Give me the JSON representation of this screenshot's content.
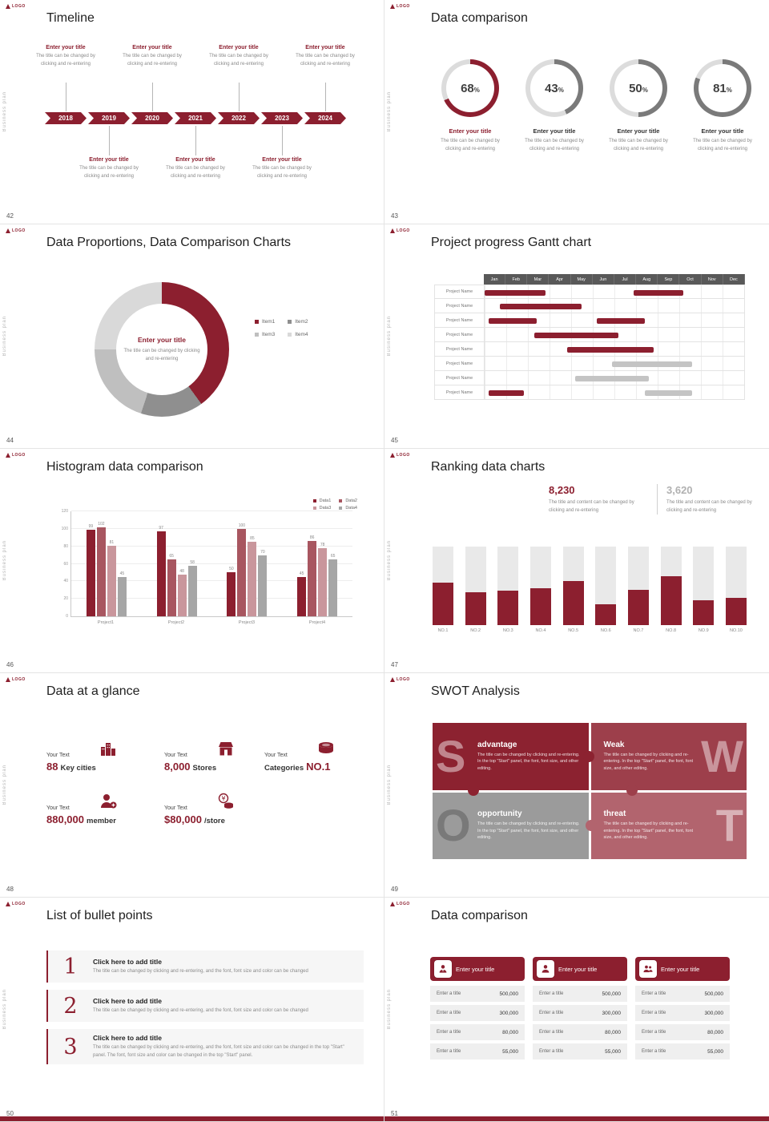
{
  "common": {
    "logo": "LOGO",
    "side_text": "Business plan",
    "item_title": "Enter your title",
    "item_desc": "The title can be changed by clicking and re-entering",
    "percent": "%",
    "colors": {
      "accent": "#8c1f2f",
      "gray_arc": "#7a7a7a",
      "track": "#dcdcdc"
    }
  },
  "timeline": {
    "page": "42",
    "title": "Timeline",
    "years": [
      "2018",
      "2019",
      "2020",
      "2021",
      "2022",
      "2023",
      "2024"
    ]
  },
  "donut_compare": {
    "page": "43",
    "title": "Data comparison",
    "items": [
      {
        "pct": 68,
        "accent": true
      },
      {
        "pct": 43,
        "accent": false
      },
      {
        "pct": 50,
        "accent": false
      },
      {
        "pct": 81,
        "accent": false
      }
    ]
  },
  "proportions": {
    "page": "44",
    "title": "Data Proportions, Data Comparison Charts",
    "chart": {
      "type": "pie",
      "segments": [
        {
          "label": "Item1",
          "value": 40,
          "color": "#8c1f2f"
        },
        {
          "label": "Item2",
          "value": 15,
          "color": "#8f8f8f"
        },
        {
          "label": "Item3",
          "value": 20,
          "color": "#bfbfbf"
        },
        {
          "label": "Item4",
          "value": 25,
          "color": "#d9d9d9"
        }
      ]
    }
  },
  "gantt": {
    "page": "45",
    "title": "Project progress Gantt chart",
    "row_label": "Project Name",
    "months": [
      "Jan",
      "Feb",
      "Mar",
      "Apr",
      "May",
      "Jun",
      "Jul",
      "Aug",
      "Sep",
      "Oct",
      "Nov",
      "Dec"
    ],
    "rows": [
      {
        "bars": [
          {
            "start": 0,
            "end": 2.8,
            "color": "#8c1f2f"
          },
          {
            "start": 6.9,
            "end": 9.2,
            "color": "#8c1f2f"
          }
        ]
      },
      {
        "bars": [
          {
            "start": 0.7,
            "end": 4.5,
            "color": "#8c1f2f"
          }
        ]
      },
      {
        "bars": [
          {
            "start": 0.2,
            "end": 2.4,
            "color": "#8c1f2f"
          },
          {
            "start": 5.2,
            "end": 7.4,
            "color": "#8c1f2f"
          }
        ]
      },
      {
        "bars": [
          {
            "start": 2.3,
            "end": 6.2,
            "color": "#8c1f2f"
          }
        ]
      },
      {
        "bars": [
          {
            "start": 3.8,
            "end": 7.8,
            "color": "#8c1f2f"
          }
        ]
      },
      {
        "bars": [
          {
            "start": 5.9,
            "end": 9.6,
            "color": "#c4c4c4"
          }
        ]
      },
      {
        "bars": [
          {
            "start": 4.2,
            "end": 7.6,
            "color": "#c4c4c4"
          }
        ]
      },
      {
        "bars": [
          {
            "start": 0.2,
            "end": 1.8,
            "color": "#8c1f2f"
          },
          {
            "start": 7.4,
            "end": 9.6,
            "color": "#c4c4c4"
          }
        ]
      }
    ]
  },
  "histogram": {
    "page": "46",
    "title": "Histogram data comparison",
    "chart": {
      "type": "bar",
      "categories": [
        "Project1",
        "Project2",
        "Project3",
        "Project4"
      ],
      "series": [
        {
          "name": "Data1",
          "color": "#8c1f2f",
          "values": [
            99,
            97,
            50,
            45
          ]
        },
        {
          "name": "Data2",
          "color": "#a85660",
          "values": [
            102,
            65,
            100,
            86
          ]
        },
        {
          "name": "Data3",
          "color": "#c9969c",
          "values": [
            81,
            48,
            85,
            78
          ]
        },
        {
          "name": "Data4",
          "color": "#a6a6a6",
          "values": [
            45,
            58,
            70,
            65
          ]
        }
      ],
      "y_ticks": [
        0,
        20,
        40,
        60,
        80,
        100,
        120
      ],
      "y_max": 120
    }
  },
  "ranking": {
    "page": "47",
    "title": "Ranking data charts",
    "stats": [
      {
        "value": "8,230",
        "desc": "The title and content can be changed by clicking and re-entering"
      },
      {
        "value": "3,620",
        "desc": "The title and content can be changed by clicking and re-entering"
      }
    ],
    "chart": {
      "type": "bar",
      "categories": [
        "NO.1",
        "NO.2",
        "NO.3",
        "NO.4",
        "NO.5",
        "NO.6",
        "NO.7",
        "NO.8",
        "NO.9",
        "NO.10"
      ],
      "values": [
        54,
        42,
        44,
        47,
        56,
        27,
        45,
        62,
        32,
        35
      ],
      "max": 100
    }
  },
  "glance": {
    "page": "48",
    "title": "Data at a glance",
    "items": [
      {
        "label": "Your Text",
        "value": "88",
        "unit": "Key cities",
        "icon": "city-icon"
      },
      {
        "label": "Your Text",
        "value": "8,000",
        "unit": "Stores",
        "icon": "store-icon"
      },
      {
        "label": "Your Text",
        "value": "NO.1",
        "unit": "Categories",
        "icon": "categories-icon"
      },
      {
        "label": "Your Text",
        "value": "880,000",
        "unit": "member",
        "icon": "member-icon"
      },
      {
        "label": "Your Text",
        "value": "$80,000",
        "unit": "/store",
        "icon": "coins-icon"
      }
    ]
  },
  "swot": {
    "page": "49",
    "title": "SWOT Analysis",
    "quads": [
      {
        "letter": "S",
        "name": "advantage",
        "desc": "The title can be changed by clicking and re-entering. In the top \"Start\" panel, the font, font size, and other editing.",
        "color": "#8c2230",
        "letter_color": "rgba(255,255,255,0.45)"
      },
      {
        "letter": "W",
        "name": "Weak",
        "desc": "The title can be changed by clicking and re-entering. In the top \"Start\" panel, the font, font size, and other editing.",
        "color": "#9d3f4b",
        "letter_color": "rgba(255,255,255,0.45)"
      },
      {
        "letter": "O",
        "name": "opportunity",
        "desc": "The title can be changed by clicking and re-entering. In the top \"Start\" panel, the font, font size, and other editing.",
        "color": "#9b9b9b",
        "letter_color": "rgba(70,70,70,0.4)"
      },
      {
        "letter": "T",
        "name": "threat",
        "desc": "The title can be changed by clicking and re-entering. In the top \"Start\" panel, the font, font size, and other editing.",
        "color": "#b2646e",
        "letter_color": "rgba(255,255,255,0.5)"
      }
    ]
  },
  "bullets": {
    "page": "50",
    "title": "List of bullet points",
    "items": [
      {
        "num": "1",
        "heading": "Click here to add title",
        "desc": "The title can be changed by clicking and re-entering, and the font, font size and color can be changed"
      },
      {
        "num": "2",
        "heading": "Click here to add title",
        "desc": "The title can be changed by clicking and re-entering, and the font, font size and color can be changed"
      },
      {
        "num": "3",
        "heading": "Click here to add title",
        "desc": "The title can be changed by clicking and re-entering, and the font, font size and color can be changed in the top \"Start\" panel. The font, font size and color can be changed in the top \"Start\" panel."
      }
    ]
  },
  "cards": {
    "page": "51",
    "title": "Data comparison",
    "cards": [
      {
        "header": "Enter your title",
        "icon": "person-icon",
        "rows": [
          {
            "label": "Enter a title",
            "value": "500,000"
          },
          {
            "label": "Enter a title",
            "value": "300,000"
          },
          {
            "label": "Enter a title",
            "value": "80,000"
          },
          {
            "label": "Enter a title",
            "value": "55,000"
          }
        ]
      },
      {
        "header": "Enter your title",
        "icon": "user-icon",
        "rows": [
          {
            "label": "Enter a title",
            "value": "500,000"
          },
          {
            "label": "Enter a title",
            "value": "300,000"
          },
          {
            "label": "Enter a title",
            "value": "80,000"
          },
          {
            "label": "Enter a title",
            "value": "55,000"
          }
        ]
      },
      {
        "header": "Enter your title",
        "icon": "people-icon",
        "rows": [
          {
            "label": "Enter a title",
            "value": "500,000"
          },
          {
            "label": "Enter a title",
            "value": "300,000"
          },
          {
            "label": "Enter a title",
            "value": "80,000"
          },
          {
            "label": "Enter a title",
            "value": "55,000"
          }
        ]
      }
    ]
  }
}
